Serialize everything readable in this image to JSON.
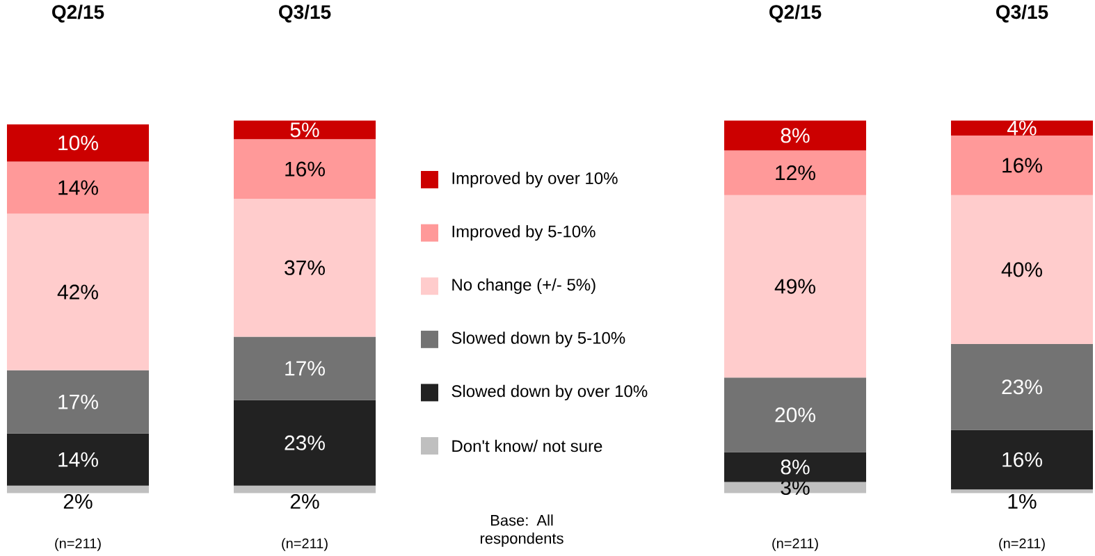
{
  "chart_data": [
    {
      "type": "bar",
      "stacked": true,
      "legend": "right",
      "categories": [
        "Q2/15",
        "Q3/15"
      ],
      "series": [
        {
          "name": "Don't know/ not sure",
          "color": "#bfbfbf",
          "values": [
            2,
            2
          ],
          "value_labels": [
            "2%",
            "2%"
          ]
        },
        {
          "name": "Slowed down by over 10%",
          "color": "#222222",
          "values": [
            14,
            23
          ],
          "value_labels": [
            "14%",
            "23%"
          ]
        },
        {
          "name": "Slowed down by 5-10%",
          "color": "#737373",
          "values": [
            17,
            17
          ],
          "value_labels": [
            "17%",
            "17%"
          ]
        },
        {
          "name": "No change (+/- 5%)",
          "color": "#ffcccc",
          "values": [
            42,
            37
          ],
          "value_labels": [
            "42%",
            "37%"
          ]
        },
        {
          "name": "Improved by 5-10%",
          "color": "#ff9999",
          "values": [
            14,
            16
          ],
          "value_labels": [
            "14%",
            "16%"
          ]
        },
        {
          "name": "Improved by over 10%",
          "color": "#cc0000",
          "values": [
            10,
            5
          ],
          "value_labels": [
            "10%",
            "5%"
          ]
        }
      ],
      "annotations": [
        "(n=211)",
        "(n=211)",
        "Base: All respondents"
      ]
    },
    {
      "type": "bar",
      "stacked": true,
      "categories": [
        "Q2/15",
        "Q3/15"
      ],
      "series": [
        {
          "color": "#bfbfbf",
          "values": [
            3,
            1
          ],
          "value_labels": [
            "3%",
            "1%"
          ]
        },
        {
          "color": "#222222",
          "values": [
            8,
            16
          ],
          "value_labels": [
            "8%",
            "16%"
          ]
        },
        {
          "color": "#737373",
          "values": [
            20,
            23
          ],
          "value_labels": [
            "20%",
            "23%"
          ]
        },
        {
          "color": "#ffcccc",
          "values": [
            49,
            40
          ],
          "value_labels": [
            "49%",
            "40%"
          ]
        },
        {
          "color": "#ff9999",
          "values": [
            12,
            16
          ],
          "value_labels": [
            "12%",
            "16%"
          ]
        },
        {
          "color": "#cc0000",
          "values": [
            8,
            4
          ],
          "value_labels": [
            "8%",
            "4%"
          ]
        }
      ],
      "annotations": [
        "(n=211)",
        "(n=211)"
      ]
    }
  ]
}
